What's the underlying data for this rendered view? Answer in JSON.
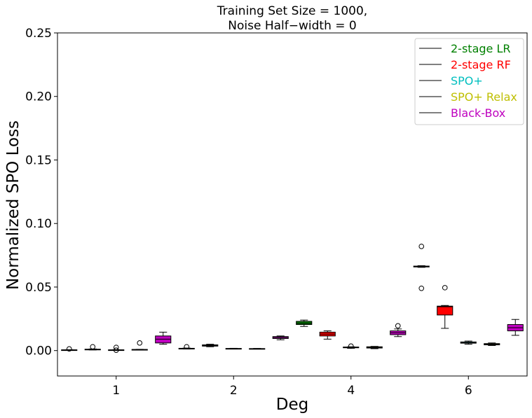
{
  "chart_data": {
    "type": "box",
    "title_lines": [
      "Training Set Size = 1000,",
      "Noise Half−width = 0"
    ],
    "xlabel": "Deg",
    "ylabel": "Normalized SPO Loss",
    "ylim": [
      -0.02,
      0.25
    ],
    "yticks": [
      "0.00",
      "0.05",
      "0.10",
      "0.15",
      "0.20",
      "0.25"
    ],
    "ytick_values": [
      0.0,
      0.05,
      0.1,
      0.15,
      0.2,
      0.25
    ],
    "categories": [
      "1",
      "2",
      "4",
      "6"
    ],
    "grid": false,
    "legend_position": "top-right",
    "series": [
      {
        "name": "2-stage LR",
        "color": "#008000",
        "boxes": [
          {
            "whislo": 0.0003,
            "q1": 0.0004,
            "median": 0.0005,
            "q3": 0.0006,
            "whishi": 0.0007,
            "fliers": [
              0.0013
            ]
          },
          {
            "whislo": 0.0012,
            "q1": 0.0014,
            "median": 0.0016,
            "q3": 0.0018,
            "whishi": 0.002,
            "fliers": [
              0.003
            ]
          },
          {
            "whislo": 0.019,
            "q1": 0.0205,
            "median": 0.0215,
            "q3": 0.023,
            "whishi": 0.024,
            "fliers": []
          },
          {
            "whislo": 0.0655,
            "q1": 0.0658,
            "median": 0.066,
            "q3": 0.0665,
            "whishi": 0.0668,
            "fliers": [
              0.082,
              0.049
            ]
          }
        ]
      },
      {
        "name": "2-stage RF",
        "color": "#ff0000",
        "boxes": [
          {
            "whislo": 0.0005,
            "q1": 0.0007,
            "median": 0.0009,
            "q3": 0.0011,
            "whishi": 0.0013,
            "fliers": [
              0.003
            ]
          },
          {
            "whislo": 0.003,
            "q1": 0.0035,
            "median": 0.004,
            "q3": 0.0045,
            "whishi": 0.005,
            "fliers": []
          },
          {
            "whislo": 0.009,
            "q1": 0.0115,
            "median": 0.013,
            "q3": 0.0145,
            "whishi": 0.0155,
            "fliers": []
          },
          {
            "whislo": 0.0175,
            "q1": 0.028,
            "median": 0.0345,
            "q3": 0.035,
            "whishi": 0.0355,
            "fliers": [
              0.0495
            ]
          }
        ]
      },
      {
        "name": "SPO+",
        "color": "#00bfbf",
        "boxes": [
          {
            "whislo": 0.0003,
            "q1": 0.0004,
            "median": 0.0005,
            "q3": 0.0006,
            "whishi": 0.0007,
            "fliers": [
              0.0025,
              0.0003
            ]
          },
          {
            "whislo": 0.0012,
            "q1": 0.0013,
            "median": 0.0015,
            "q3": 0.0017,
            "whishi": 0.0018,
            "fliers": []
          },
          {
            "whislo": 0.0018,
            "q1": 0.0022,
            "median": 0.0025,
            "q3": 0.0028,
            "whishi": 0.003,
            "fliers": [
              0.0035
            ]
          },
          {
            "whislo": 0.005,
            "q1": 0.0058,
            "median": 0.0063,
            "q3": 0.0068,
            "whishi": 0.0075,
            "fliers": []
          }
        ]
      },
      {
        "name": "SPO+ Relax",
        "color": "#bfbf00",
        "boxes": [
          {
            "whislo": 0.0006,
            "q1": 0.0007,
            "median": 0.0008,
            "q3": 0.0009,
            "whishi": 0.001,
            "fliers": [
              0.006
            ]
          },
          {
            "whislo": 0.0012,
            "q1": 0.0013,
            "median": 0.0015,
            "q3": 0.0016,
            "whishi": 0.0017,
            "fliers": []
          },
          {
            "whislo": 0.0015,
            "q1": 0.002,
            "median": 0.0025,
            "q3": 0.003,
            "whishi": 0.0033,
            "fliers": []
          },
          {
            "whislo": 0.004,
            "q1": 0.0045,
            "median": 0.005,
            "q3": 0.0055,
            "whishi": 0.006,
            "fliers": []
          }
        ]
      },
      {
        "name": "Black-Box",
        "color": "#bf00bf",
        "boxes": [
          {
            "whislo": 0.005,
            "q1": 0.006,
            "median": 0.009,
            "q3": 0.0115,
            "whishi": 0.0145,
            "fliers": []
          },
          {
            "whislo": 0.0085,
            "q1": 0.0095,
            "median": 0.0103,
            "q3": 0.011,
            "whishi": 0.0115,
            "fliers": []
          },
          {
            "whislo": 0.011,
            "q1": 0.0125,
            "median": 0.014,
            "q3": 0.0155,
            "whishi": 0.017,
            "fliers": [
              0.0195
            ]
          },
          {
            "whislo": 0.012,
            "q1": 0.0155,
            "median": 0.018,
            "q3": 0.0205,
            "whishi": 0.0245,
            "fliers": []
          }
        ]
      }
    ]
  }
}
